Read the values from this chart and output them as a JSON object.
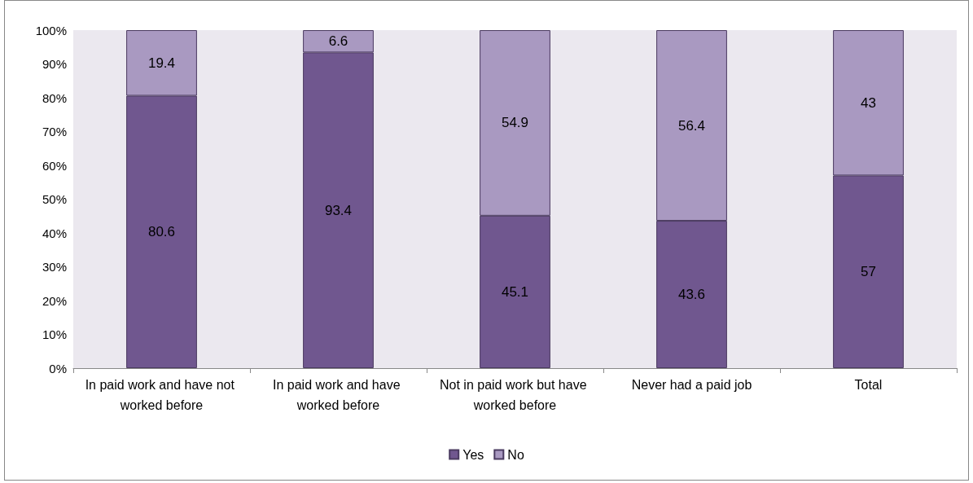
{
  "chart_data": {
    "type": "bar",
    "stacked": true,
    "categories": [
      "In paid work and have not worked before",
      "In paid work and have worked before",
      "Not in paid work but have worked before",
      "Never had a paid job",
      "Total"
    ],
    "series": [
      {
        "name": "Yes",
        "color": "#70578f",
        "values": [
          80.6,
          93.4,
          45.1,
          43.6,
          57
        ]
      },
      {
        "name": "No",
        "color": "#a999c1",
        "values": [
          19.4,
          6.6,
          54.9,
          56.4,
          43
        ]
      }
    ],
    "ylim": [
      0,
      100
    ],
    "yticks": [
      {
        "value": 0,
        "label": "0%"
      },
      {
        "value": 10,
        "label": "10%"
      },
      {
        "value": 20,
        "label": "20%"
      },
      {
        "value": 30,
        "label": "30%"
      },
      {
        "value": 40,
        "label": "40%"
      },
      {
        "value": 50,
        "label": "50%"
      },
      {
        "value": 60,
        "label": "60%"
      },
      {
        "value": 70,
        "label": "70%"
      },
      {
        "value": 80,
        "label": "80%"
      },
      {
        "value": 90,
        "label": "90%"
      },
      {
        "value": 100,
        "label": "100%"
      }
    ],
    "data_labels": true,
    "grid": false,
    "legend": "bottom"
  }
}
